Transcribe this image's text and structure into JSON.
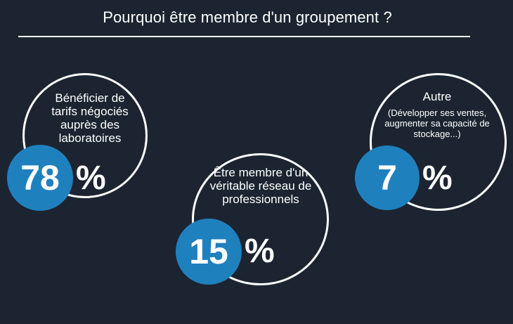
{
  "title": "Pourquoi être membre d'un groupement ?",
  "colors": {
    "background": "#1c2431",
    "accent": "#1f80be",
    "text": "#ffffff"
  },
  "chart_data": {
    "type": "infographic",
    "title": "Pourquoi être membre d'un groupement ?",
    "items": [
      {
        "label": "Bénéficier de tarifs négociés auprès des laboratoires",
        "note": "",
        "value": 78,
        "value_text": "78",
        "unit": "%"
      },
      {
        "label": "Être membre d'un véritable réseau de professionnels",
        "note": "",
        "value": 15,
        "value_text": "15",
        "unit": "%"
      },
      {
        "label": "Autre",
        "note": "(Développer ses ventes, augmenter sa capacité de stockage...)",
        "value": 7,
        "value_text": "7",
        "unit": "%"
      }
    ]
  }
}
